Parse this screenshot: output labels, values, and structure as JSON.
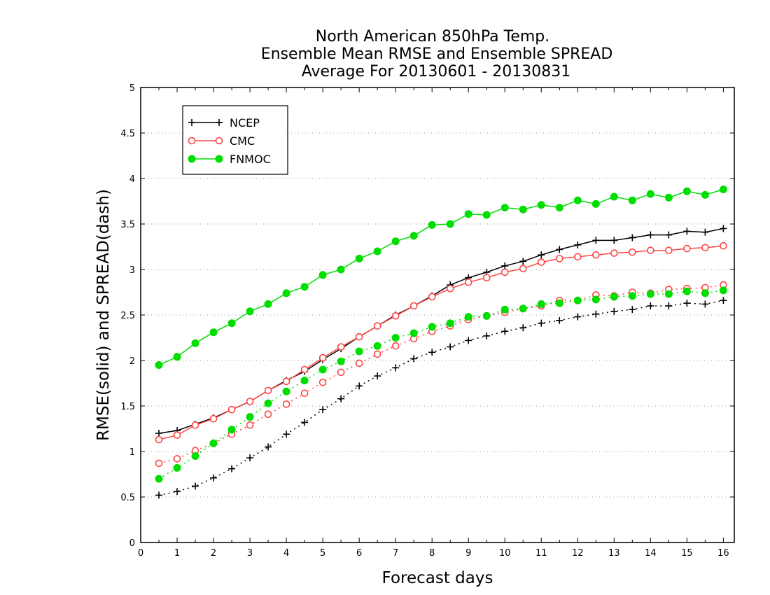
{
  "chart_data": {
    "type": "line",
    "title": [
      "North American 850hPa Temp.",
      "Ensemble Mean RMSE and Ensemble SPREAD",
      "Average For 20130601 - 20130831"
    ],
    "xlabel": "Forecast days",
    "ylabel": "RMSE(solid) and SPREAD(dash)",
    "xlim": [
      0,
      16.3
    ],
    "ylim": [
      0,
      5
    ],
    "xticks": [
      "0",
      "1",
      "2",
      "3",
      "4",
      "5",
      "6",
      "7",
      "8",
      "9",
      "10",
      "11",
      "12",
      "13",
      "14",
      "15",
      "16"
    ],
    "yticks": [
      "0",
      "0.5",
      "1",
      "1.5",
      "2",
      "2.5",
      "3",
      "3.5",
      "4",
      "4.5",
      "5"
    ],
    "grid": true,
    "legend_position": "top-left",
    "x": [
      0.5,
      1,
      1.5,
      2,
      2.5,
      3,
      3.5,
      4,
      4.5,
      5,
      5.5,
      6,
      6.5,
      7,
      7.5,
      8,
      8.5,
      9,
      9.5,
      10,
      10.5,
      11,
      11.5,
      12,
      12.5,
      13,
      13.5,
      14,
      14.5,
      15,
      15.5,
      16
    ],
    "series": [
      {
        "name": "NCEP",
        "metric": "RMSE",
        "style": "solid",
        "color": "#000000",
        "marker": "plus",
        "values": [
          1.2,
          1.23,
          1.3,
          1.37,
          1.46,
          1.55,
          1.67,
          1.78,
          1.88,
          2.01,
          2.13,
          2.26,
          2.38,
          2.5,
          2.6,
          2.71,
          2.83,
          2.91,
          2.97,
          3.04,
          3.09,
          3.16,
          3.22,
          3.27,
          3.32,
          3.32,
          3.35,
          3.38,
          3.38,
          3.42,
          3.41,
          3.45
        ]
      },
      {
        "name": "CMC",
        "metric": "RMSE",
        "style": "solid",
        "color": "#ff4444",
        "marker": "circle-open",
        "values": [
          1.13,
          1.18,
          1.29,
          1.36,
          1.46,
          1.55,
          1.67,
          1.77,
          1.9,
          2.03,
          2.15,
          2.26,
          2.38,
          2.49,
          2.6,
          2.7,
          2.79,
          2.86,
          2.91,
          2.97,
          3.01,
          3.08,
          3.12,
          3.14,
          3.16,
          3.18,
          3.19,
          3.21,
          3.21,
          3.23,
          3.24,
          3.26
        ]
      },
      {
        "name": "FNMOC",
        "metric": "RMSE",
        "style": "solid",
        "color": "#00dd00",
        "marker": "circle-filled",
        "values": [
          1.95,
          2.04,
          2.19,
          2.31,
          2.41,
          2.54,
          2.62,
          2.74,
          2.81,
          2.94,
          3.0,
          3.12,
          3.2,
          3.31,
          3.37,
          3.49,
          3.5,
          3.61,
          3.6,
          3.68,
          3.66,
          3.71,
          3.68,
          3.76,
          3.72,
          3.8,
          3.76,
          3.83,
          3.79,
          3.86,
          3.82,
          3.88
        ]
      },
      {
        "name": "NCEP",
        "metric": "SPREAD",
        "style": "dash",
        "color": "#000000",
        "marker": "plus",
        "values": [
          0.52,
          0.56,
          0.62,
          0.71,
          0.81,
          0.93,
          1.05,
          1.19,
          1.32,
          1.46,
          1.58,
          1.72,
          1.83,
          1.92,
          2.02,
          2.09,
          2.15,
          2.22,
          2.27,
          2.32,
          2.36,
          2.41,
          2.44,
          2.48,
          2.51,
          2.54,
          2.56,
          2.6,
          2.6,
          2.63,
          2.62,
          2.66
        ]
      },
      {
        "name": "CMC",
        "metric": "SPREAD",
        "style": "dash",
        "color": "#ff4444",
        "marker": "circle-open",
        "values": [
          0.87,
          0.92,
          1.01,
          1.09,
          1.19,
          1.29,
          1.41,
          1.52,
          1.64,
          1.76,
          1.87,
          1.97,
          2.07,
          2.16,
          2.24,
          2.32,
          2.38,
          2.45,
          2.49,
          2.53,
          2.57,
          2.6,
          2.66,
          2.66,
          2.72,
          2.71,
          2.75,
          2.74,
          2.78,
          2.79,
          2.8,
          2.83
        ]
      },
      {
        "name": "FNMOC",
        "metric": "SPREAD",
        "style": "dash",
        "color": "#00dd00",
        "marker": "circle-filled",
        "values": [
          0.7,
          0.82,
          0.95,
          1.09,
          1.24,
          1.38,
          1.53,
          1.66,
          1.78,
          1.9,
          1.99,
          2.1,
          2.16,
          2.25,
          2.3,
          2.37,
          2.41,
          2.48,
          2.49,
          2.56,
          2.57,
          2.62,
          2.63,
          2.66,
          2.67,
          2.7,
          2.71,
          2.73,
          2.73,
          2.76,
          2.74,
          2.77
        ]
      }
    ],
    "legend": [
      {
        "name": "NCEP",
        "color": "#000000",
        "marker": "plus"
      },
      {
        "name": "CMC",
        "color": "#ff4444",
        "marker": "circle-open"
      },
      {
        "name": "FNMOC",
        "color": "#00dd00",
        "marker": "circle-filled"
      }
    ]
  }
}
